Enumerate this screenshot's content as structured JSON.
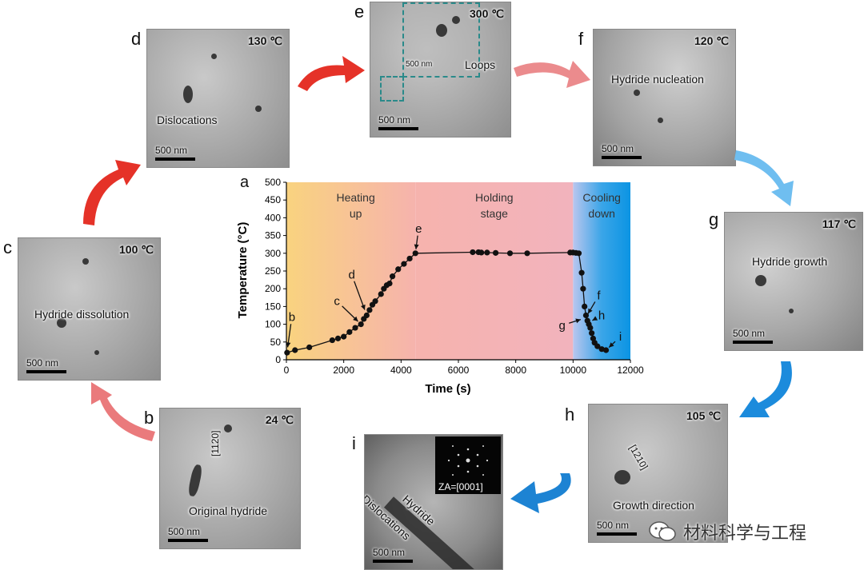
{
  "panels": {
    "b": {
      "letter": "b",
      "temp": "24 ℃",
      "caption": "Original hydride",
      "scale": "500 nm",
      "direction": "[1120]"
    },
    "c": {
      "letter": "c",
      "temp": "100 ℃",
      "caption": "Hydride dissolution",
      "scale": "500 nm"
    },
    "d": {
      "letter": "d",
      "temp": "130 ℃",
      "caption": "Dislocations",
      "scale": "500 nm"
    },
    "e": {
      "letter": "e",
      "temp": "300 ℃",
      "caption": "Loops",
      "scale": "500 nm",
      "inset_scale": "500 nm"
    },
    "f": {
      "letter": "f",
      "temp": "120 ℃",
      "caption": "Hydride nucleation",
      "scale": "500 nm"
    },
    "g": {
      "letter": "g",
      "temp": "117 ℃",
      "caption": "Hydride growth",
      "scale": "500 nm"
    },
    "h": {
      "letter": "h",
      "temp": "105 ℃",
      "caption": "Growth direction",
      "scale": "500 nm",
      "direction": "[1210]"
    },
    "i": {
      "letter": "i",
      "caption1": "Dislocations",
      "caption2": "Hydride",
      "scale": "500 nm",
      "inset": "ZA=[0001]"
    }
  },
  "watermark": "材料科学与工程",
  "chart_data": {
    "type": "line",
    "panel_letter": "a",
    "xlabel": "Time (s)",
    "ylabel": "Temperature (°C)",
    "xlim": [
      0,
      12000
    ],
    "ylim": [
      0,
      500
    ],
    "xticks": [
      "0",
      "2000",
      "4000",
      "6000",
      "8000",
      "10000",
      "12000"
    ],
    "yticks": [
      "0",
      "50",
      "100",
      "150",
      "200",
      "250",
      "300",
      "350",
      "400",
      "450",
      "500"
    ],
    "regions": [
      {
        "label1": "Heating",
        "label2": "up",
        "x": [
          0,
          4500
        ],
        "color": "#f9c97a"
      },
      {
        "label1": "Holding",
        "label2": "stage",
        "x": [
          4500,
          10000
        ],
        "color": "#f6b6b3"
      },
      {
        "label1": "Cooling",
        "label2": "down",
        "x": [
          10000,
          12000
        ],
        "color": "#1aa3e6"
      }
    ],
    "points": [
      [
        24,
        20
      ],
      [
        300,
        27
      ],
      [
        800,
        35
      ],
      [
        1600,
        55
      ],
      [
        1800,
        60
      ],
      [
        2000,
        65
      ],
      [
        2200,
        78
      ],
      [
        2400,
        90
      ],
      [
        2600,
        100
      ],
      [
        2700,
        115
      ],
      [
        2800,
        125
      ],
      [
        2900,
        140
      ],
      [
        3000,
        155
      ],
      [
        3100,
        165
      ],
      [
        3300,
        185
      ],
      [
        3400,
        200
      ],
      [
        3500,
        210
      ],
      [
        3600,
        215
      ],
      [
        3700,
        235
      ],
      [
        3900,
        255
      ],
      [
        4100,
        270
      ],
      [
        4300,
        285
      ],
      [
        4500,
        300
      ],
      [
        6500,
        303
      ],
      [
        6700,
        303
      ],
      [
        6800,
        302
      ],
      [
        7000,
        302
      ],
      [
        7300,
        301
      ],
      [
        7800,
        300
      ],
      [
        8400,
        300
      ],
      [
        9900,
        302
      ],
      [
        10000,
        302
      ],
      [
        10100,
        301
      ],
      [
        10200,
        300
      ],
      [
        10300,
        245
      ],
      [
        10350,
        200
      ],
      [
        10400,
        150
      ],
      [
        10450,
        125
      ],
      [
        10500,
        110
      ],
      [
        10550,
        100
      ],
      [
        10600,
        90
      ],
      [
        10650,
        75
      ],
      [
        10700,
        60
      ],
      [
        10750,
        48
      ],
      [
        10850,
        38
      ],
      [
        11000,
        30
      ],
      [
        11150,
        27
      ]
    ],
    "annotations": [
      {
        "label": "b",
        "x": 24,
        "y": 24
      },
      {
        "label": "c",
        "x": 2600,
        "y": 100
      },
      {
        "label": "d",
        "x": 2780,
        "y": 130
      },
      {
        "label": "e",
        "x": 4500,
        "y": 300
      },
      {
        "label": "f",
        "x": 10450,
        "y": 120
      },
      {
        "label": "g",
        "x": 10400,
        "y": 117
      },
      {
        "label": "h",
        "x": 10550,
        "y": 105
      },
      {
        "label": "i",
        "x": 11150,
        "y": 27
      }
    ]
  }
}
